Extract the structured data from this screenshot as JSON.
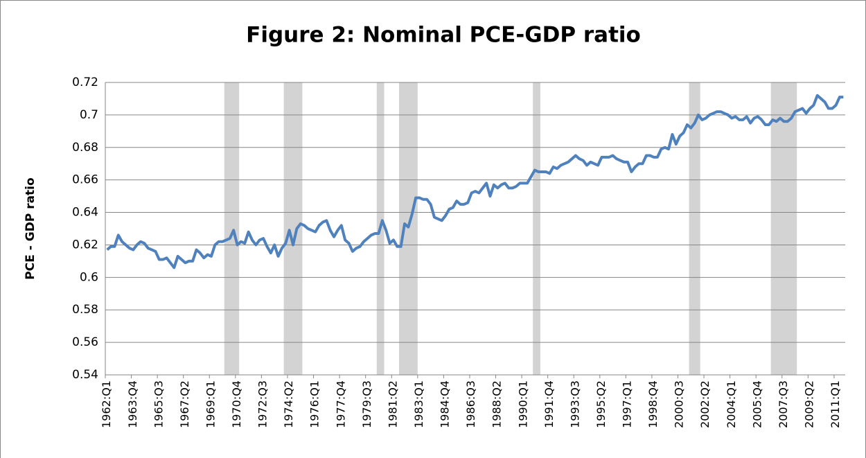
{
  "chart_data": {
    "type": "line",
    "title": "Figure 2: Nominal PCE-GDP ratio",
    "y_label": "PCE - GDP ratio",
    "categories": [
      "1962:Q1",
      null,
      null,
      null,
      null,
      null,
      null,
      "1963:Q4",
      null,
      null,
      null,
      null,
      null,
      null,
      "1965:Q3",
      null,
      null,
      null,
      null,
      null,
      null,
      "1967:Q2",
      null,
      null,
      null,
      null,
      null,
      null,
      "1969:Q1",
      null,
      null,
      null,
      null,
      null,
      null,
      "1970:Q4",
      null,
      null,
      null,
      null,
      null,
      null,
      "1972:Q3",
      null,
      null,
      null,
      null,
      null,
      null,
      "1974:Q2",
      null,
      null,
      null,
      null,
      null,
      null,
      "1976:Q1",
      null,
      null,
      null,
      null,
      null,
      null,
      "1977:Q4",
      null,
      null,
      null,
      null,
      null,
      null,
      "1979:Q3",
      null,
      null,
      null,
      null,
      null,
      null,
      "1981:Q2",
      null,
      null,
      null,
      null,
      null,
      null,
      "1983:Q1",
      null,
      null,
      null,
      null,
      null,
      null,
      "1984:Q4",
      null,
      null,
      null,
      null,
      null,
      null,
      "1986:Q3",
      null,
      null,
      null,
      null,
      null,
      null,
      "1988:Q2",
      null,
      null,
      null,
      null,
      null,
      null,
      "1990:Q1",
      null,
      null,
      null,
      null,
      null,
      null,
      "1991:Q4",
      null,
      null,
      null,
      null,
      null,
      null,
      "1993:Q3",
      null,
      null,
      null,
      null,
      null,
      null,
      "1995:Q2",
      null,
      null,
      null,
      null,
      null,
      null,
      "1997:Q1",
      null,
      null,
      null,
      null,
      null,
      null,
      "1998:Q4",
      null,
      null,
      null,
      null,
      null,
      null,
      "2000:Q3",
      null,
      null,
      null,
      null,
      null,
      null,
      "2002:Q2",
      null,
      null,
      null,
      null,
      null,
      null,
      "2004:Q1",
      null,
      null,
      null,
      null,
      null,
      null,
      "2005:Q4",
      null,
      null,
      null,
      null,
      null,
      null,
      "2007:Q3",
      null,
      null,
      null,
      null,
      null,
      null,
      "2009:Q2",
      null,
      null,
      null,
      null,
      null,
      null,
      "2011:Q1",
      null,
      null
    ],
    "values": [
      0.617,
      0.619,
      0.619,
      0.626,
      0.622,
      0.62,
      0.618,
      0.617,
      0.62,
      0.622,
      0.621,
      0.618,
      0.617,
      0.616,
      0.611,
      0.611,
      0.612,
      0.609,
      0.606,
      0.613,
      0.611,
      0.609,
      0.61,
      0.61,
      0.617,
      0.615,
      0.612,
      0.614,
      0.613,
      0.62,
      0.622,
      0.622,
      0.623,
      0.624,
      0.629,
      0.62,
      0.622,
      0.621,
      0.628,
      0.623,
      0.62,
      0.623,
      0.624,
      0.619,
      0.615,
      0.62,
      0.613,
      0.618,
      0.621,
      0.629,
      0.62,
      0.63,
      0.633,
      0.632,
      0.63,
      0.629,
      0.628,
      0.632,
      0.634,
      0.635,
      0.629,
      0.625,
      0.629,
      0.632,
      0.623,
      0.621,
      0.616,
      0.618,
      0.619,
      0.622,
      0.624,
      0.626,
      0.627,
      0.627,
      0.635,
      0.629,
      0.621,
      0.623,
      0.619,
      0.619,
      0.633,
      0.631,
      0.639,
      0.649,
      0.649,
      0.648,
      0.648,
      0.645,
      0.637,
      0.636,
      0.635,
      0.638,
      0.642,
      0.643,
      0.647,
      0.645,
      0.645,
      0.646,
      0.652,
      0.653,
      0.652,
      0.655,
      0.658,
      0.65,
      0.657,
      0.655,
      0.657,
      0.658,
      0.655,
      0.655,
      0.656,
      0.658,
      0.658,
      0.658,
      0.662,
      0.666,
      0.665,
      0.665,
      0.665,
      0.664,
      0.668,
      0.667,
      0.669,
      0.67,
      0.671,
      0.673,
      0.675,
      0.673,
      0.672,
      0.669,
      0.671,
      0.67,
      0.669,
      0.674,
      0.674,
      0.674,
      0.675,
      0.673,
      0.672,
      0.671,
      0.671,
      0.665,
      0.668,
      0.67,
      0.67,
      0.675,
      0.675,
      0.674,
      0.674,
      0.679,
      0.68,
      0.679,
      0.688,
      0.682,
      0.687,
      0.689,
      0.694,
      0.692,
      0.695,
      0.7,
      0.697,
      0.698,
      0.7,
      0.701,
      0.702,
      0.702,
      0.701,
      0.7,
      0.698,
      0.699,
      0.697,
      0.697,
      0.699,
      0.695,
      0.698,
      0.699,
      0.697,
      0.694,
      0.694,
      0.697,
      0.696,
      0.698,
      0.696,
      0.696,
      0.698,
      0.702,
      0.703,
      0.704,
      0.701,
      0.704,
      0.706,
      0.712,
      0.71,
      0.708,
      0.704,
      0.704,
      0.706,
      0.711,
      0.711
    ],
    "color": "#4f81bd",
    "recessions": [
      [
        32,
        35
      ],
      [
        48,
        52
      ],
      [
        73,
        74
      ],
      [
        79,
        83
      ],
      [
        115,
        116
      ],
      [
        157,
        159
      ],
      [
        179,
        185
      ]
    ],
    "recession_color": "#d3d3d3",
    "ylim": [
      0.54,
      0.72
    ],
    "yticks": [
      0.54,
      0.56,
      0.58,
      0.6,
      0.62,
      0.64,
      0.66,
      0.68,
      0.7,
      0.72
    ],
    "grid": true
  }
}
